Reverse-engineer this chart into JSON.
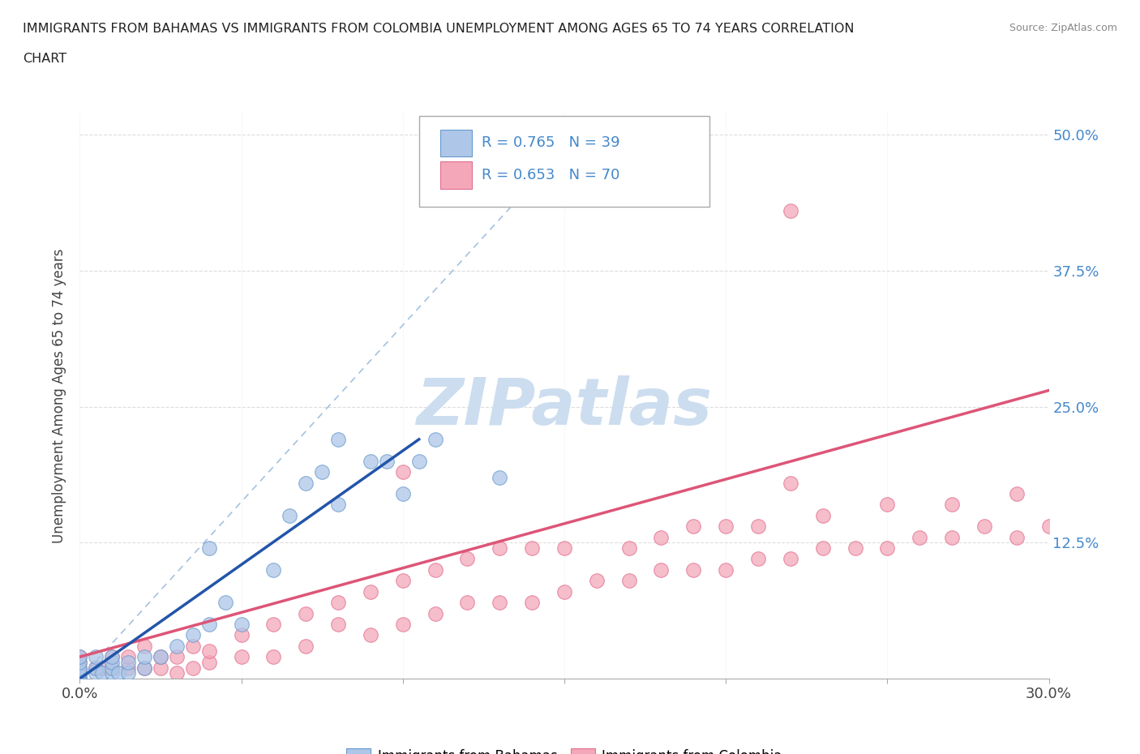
{
  "title_line1": "IMMIGRANTS FROM BAHAMAS VS IMMIGRANTS FROM COLOMBIA UNEMPLOYMENT AMONG AGES 65 TO 74 YEARS CORRELATION",
  "title_line2": "CHART",
  "source": "Source: ZipAtlas.com",
  "ylabel": "Unemployment Among Ages 65 to 74 years",
  "xlim": [
    0.0,
    0.3
  ],
  "ylim": [
    0.0,
    0.52
  ],
  "ytick_vals": [
    0.0,
    0.125,
    0.25,
    0.375,
    0.5
  ],
  "ytick_labels": [
    "",
    "12.5%",
    "25.0%",
    "37.5%",
    "50.0%"
  ],
  "xtick_vals": [
    0.0,
    0.05,
    0.1,
    0.15,
    0.2,
    0.25,
    0.3
  ],
  "xtick_labels": [
    "0.0%",
    "",
    "",
    "",
    "",
    "",
    "30.0%"
  ],
  "legend_labels": [
    "Immigrants from Bahamas",
    "Immigrants from Colombia"
  ],
  "legend_R": [
    0.765,
    0.653
  ],
  "legend_N": [
    39,
    70
  ],
  "bahamas_color": "#aec6e8",
  "colombia_color": "#f4a7b9",
  "bahamas_edge_color": "#6699cc",
  "colombia_edge_color": "#e07090",
  "bahamas_line_color": "#2255aa",
  "colombia_line_color": "#dd5577",
  "diag_color": "#99bbdd",
  "watermark_color": "#ccddef",
  "ytick_color": "#4488cc",
  "xtick_color": "#444444",
  "grid_color": "#dddddd",
  "background_color": "#ffffff",
  "title_color": "#222222",
  "source_color": "#888888",
  "bahamas_x": [
    0.0,
    0.0,
    0.0,
    0.0,
    0.0,
    0.0,
    0.0,
    0.005,
    0.005,
    0.005,
    0.007,
    0.01,
    0.01,
    0.01,
    0.01,
    0.012,
    0.015,
    0.015,
    0.02,
    0.02,
    0.025,
    0.03,
    0.035,
    0.04,
    0.04,
    0.045,
    0.05,
    0.06,
    0.065,
    0.07,
    0.075,
    0.08,
    0.08,
    0.09,
    0.095,
    0.1,
    0.105,
    0.11,
    0.13
  ],
  "bahamas_y": [
    0.0,
    0.003,
    0.005,
    0.007,
    0.01,
    0.015,
    0.02,
    0.005,
    0.01,
    0.02,
    0.005,
    0.005,
    0.01,
    0.015,
    0.02,
    0.005,
    0.005,
    0.015,
    0.01,
    0.02,
    0.02,
    0.03,
    0.04,
    0.05,
    0.12,
    0.07,
    0.05,
    0.1,
    0.15,
    0.18,
    0.19,
    0.16,
    0.22,
    0.2,
    0.2,
    0.17,
    0.2,
    0.22,
    0.185
  ],
  "bahamas_line_x": [
    0.0,
    0.105
  ],
  "bahamas_line_y": [
    0.0,
    0.22
  ],
  "colombia_x": [
    0.0,
    0.0,
    0.0,
    0.0,
    0.0,
    0.005,
    0.007,
    0.01,
    0.01,
    0.015,
    0.015,
    0.02,
    0.02,
    0.025,
    0.025,
    0.03,
    0.03,
    0.035,
    0.035,
    0.04,
    0.04,
    0.05,
    0.05,
    0.06,
    0.06,
    0.07,
    0.07,
    0.08,
    0.08,
    0.09,
    0.09,
    0.1,
    0.1,
    0.11,
    0.11,
    0.12,
    0.12,
    0.13,
    0.13,
    0.14,
    0.14,
    0.15,
    0.15,
    0.16,
    0.17,
    0.17,
    0.18,
    0.18,
    0.19,
    0.19,
    0.2,
    0.2,
    0.21,
    0.21,
    0.22,
    0.22,
    0.23,
    0.23,
    0.24,
    0.25,
    0.25,
    0.26,
    0.27,
    0.27,
    0.28,
    0.29,
    0.29,
    0.3,
    0.1,
    0.22
  ],
  "colombia_y": [
    0.0,
    0.005,
    0.01,
    0.015,
    0.02,
    0.01,
    0.01,
    0.01,
    0.02,
    0.01,
    0.02,
    0.01,
    0.03,
    0.01,
    0.02,
    0.005,
    0.02,
    0.01,
    0.03,
    0.015,
    0.025,
    0.02,
    0.04,
    0.02,
    0.05,
    0.03,
    0.06,
    0.05,
    0.07,
    0.04,
    0.08,
    0.05,
    0.09,
    0.06,
    0.1,
    0.07,
    0.11,
    0.07,
    0.12,
    0.07,
    0.12,
    0.08,
    0.12,
    0.09,
    0.09,
    0.12,
    0.1,
    0.13,
    0.1,
    0.14,
    0.1,
    0.14,
    0.11,
    0.14,
    0.11,
    0.43,
    0.12,
    0.15,
    0.12,
    0.12,
    0.16,
    0.13,
    0.13,
    0.16,
    0.14,
    0.13,
    0.17,
    0.14,
    0.19,
    0.18
  ],
  "colombia_line_x": [
    0.0,
    0.3
  ],
  "colombia_line_y": [
    0.02,
    0.265
  ]
}
